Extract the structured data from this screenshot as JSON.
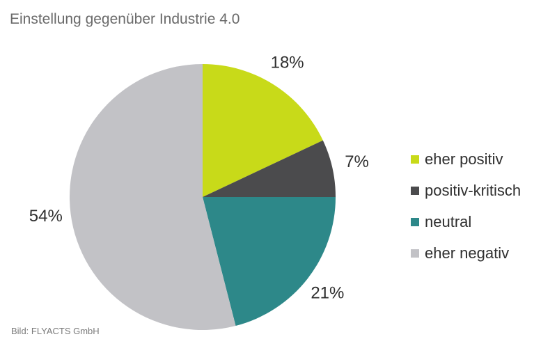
{
  "title": "Einstellung gegenüber Industrie 4.0",
  "credit": "Bild: FLYACTS GmbH",
  "chart_data": {
    "type": "pie",
    "title": "Einstellung gegenüber Industrie 4.0",
    "legend_position": "right",
    "slices": [
      {
        "label": "eher positiv",
        "value": 18,
        "value_label": "18%",
        "color": "#c8da19"
      },
      {
        "label": "positiv-kritisch",
        "value": 7,
        "value_label": "7%",
        "color": "#4b4b4d"
      },
      {
        "label": "neutral",
        "value": 21,
        "value_label": "21%",
        "color": "#2d8889"
      },
      {
        "label": "eher negativ",
        "value": 54,
        "value_label": "54%",
        "color": "#c2c2c6"
      }
    ]
  }
}
